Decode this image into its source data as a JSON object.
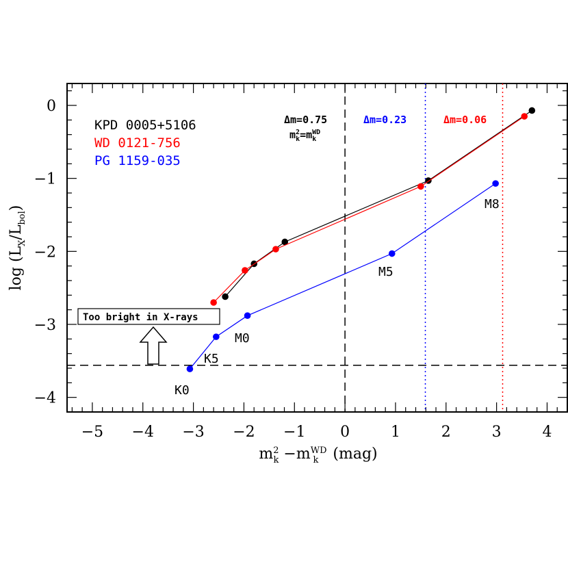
{
  "chart_data": {
    "type": "line",
    "xlabel": "m_k^2 − m_k^WD (mag)",
    "ylabel": "log (L_X/L_bol)",
    "xlim": [
      -5.5,
      4.4
    ],
    "ylim": [
      -4.2,
      0.3
    ],
    "xticks": [
      -5,
      -4,
      -3,
      -2,
      -1,
      0,
      1,
      2,
      3,
      4
    ],
    "yticks": [
      0,
      -1,
      -2,
      -3,
      -4
    ],
    "grid": false,
    "legend_position": "top-left",
    "series": [
      {
        "name": "KPD 0005+5106",
        "color": "#000000",
        "x": [
          -2.37,
          -1.8,
          -1.19,
          1.65,
          3.7
        ],
        "y": [
          -2.62,
          -2.17,
          -1.87,
          -1.03,
          -0.07
        ]
      },
      {
        "name": "WD 0121-756",
        "color": "#ff0000",
        "x": [
          -2.6,
          -1.98,
          -1.37,
          1.5,
          3.55
        ],
        "y": [
          -2.7,
          -2.26,
          -1.97,
          -1.11,
          -0.15
        ]
      },
      {
        "name": "PG 1159-035",
        "color": "#0000ff",
        "x": [
          -3.07,
          -2.55,
          -1.93,
          0.93,
          2.98
        ],
        "y": [
          -3.61,
          -3.17,
          -2.88,
          -2.03,
          -1.07
        ]
      }
    ],
    "spectral_type_labels": [
      "K0",
      "K5",
      "M0",
      "M5",
      "M8"
    ],
    "reference_lines": {
      "horizontal_y": -3.56,
      "vertical_dashed_x": 0,
      "vertical_blue_x": 1.59,
      "vertical_red_x": 3.12
    },
    "annotations": {
      "black_dm": "Δm=0.75",
      "black_eq_main": "m",
      "black_eq_sup": "2",
      "black_eq_sub": "k",
      "black_eq_mid": "=m",
      "black_eq_sup2": "WD",
      "black_eq_sub2": "k",
      "blue_dm": "Δm=0.23",
      "red_dm": "Δm=0.06",
      "box_text": "Too bright in X-rays"
    }
  }
}
